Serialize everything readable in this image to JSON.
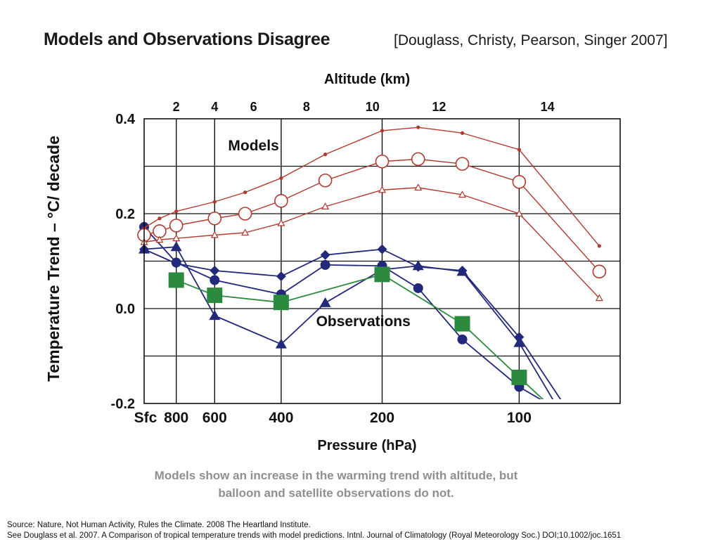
{
  "title": "Models and Observations Disagree",
  "citation": "[Douglass, Christy, Pearson, Singer 2007]",
  "caption_lines": [
    "Models show an increase in the warming trend with altitude, but",
    "balloon and satellite observations do not."
  ],
  "source_lines": [
    "Source: Nature, Not Human Activity, Rules the Climate. 2008 The Heartland Institute.",
    " See Douglass et al. 2007. A Comparison of tropical temperature trends with model predictions. Intnl. Journal of Climatology (Royal Meteorology Soc.) DOI;10.1002/joc.1651"
  ],
  "chart_data": {
    "type": "line",
    "title": "",
    "xlabel": "Pressure (hPa)",
    "x2label": "Altitude (km)",
    "ylabel": "Temperature Trend – °C/ decade",
    "ylim": [
      -0.2,
      0.4
    ],
    "yticks": [
      {
        "value": 0.4,
        "label": "0.4"
      },
      {
        "value": 0.2,
        "label": "0.2"
      },
      {
        "value": 0.0,
        "label": "0.0"
      },
      {
        "value": -0.2,
        "label": "-0.2"
      }
    ],
    "xticks": [
      {
        "value": 1000,
        "label": "Sfc"
      },
      {
        "value": 850,
        "label": "800"
      },
      {
        "value": 700,
        "label": "600"
      },
      {
        "value": 500,
        "label": "400"
      },
      {
        "value": 300,
        "label": "200"
      },
      {
        "value": 150,
        "label": "100"
      }
    ],
    "x2ticks": [
      {
        "value": 850,
        "label": "2"
      },
      {
        "value": 700,
        "label": "4"
      },
      {
        "value": 575,
        "label": "6"
      },
      {
        "value": 440,
        "label": "8"
      },
      {
        "value": 315,
        "label": "10"
      },
      {
        "value": 225,
        "label": "12"
      },
      {
        "value": 130,
        "label": "14"
      }
    ],
    "grid": true,
    "annotations": [
      {
        "text": "Models",
        "x": 575,
        "y": 0.345
      },
      {
        "text": "Observations",
        "x": 330,
        "y": -0.025
      }
    ],
    "series": [
      {
        "color": "#b03a2e",
        "marker": "dot",
        "group": "models",
        "points": [
          [
            1000,
            0.17
          ],
          [
            925,
            0.19
          ],
          [
            850,
            0.205
          ],
          [
            700,
            0.225
          ],
          [
            600,
            0.245
          ],
          [
            500,
            0.275
          ],
          [
            400,
            0.325
          ],
          [
            300,
            0.375
          ],
          [
            250,
            0.382
          ],
          [
            200,
            0.37
          ],
          [
            150,
            0.335
          ],
          [
            100,
            0.132
          ]
        ]
      },
      {
        "color": "#b03a2e",
        "marker": "circle",
        "group": "models",
        "points": [
          [
            1000,
            0.155
          ],
          [
            925,
            0.163
          ],
          [
            850,
            0.175
          ],
          [
            700,
            0.19
          ],
          [
            600,
            0.2
          ],
          [
            500,
            0.227
          ],
          [
            400,
            0.27
          ],
          [
            300,
            0.31
          ],
          [
            250,
            0.315
          ],
          [
            200,
            0.305
          ],
          [
            150,
            0.267
          ],
          [
            100,
            0.078
          ]
        ]
      },
      {
        "color": "#b03a2e",
        "marker": "triangle-open",
        "group": "models",
        "points": [
          [
            1000,
            0.14
          ],
          [
            925,
            0.145
          ],
          [
            850,
            0.148
          ],
          [
            700,
            0.155
          ],
          [
            600,
            0.16
          ],
          [
            500,
            0.18
          ],
          [
            400,
            0.215
          ],
          [
            300,
            0.25
          ],
          [
            250,
            0.255
          ],
          [
            200,
            0.24
          ],
          [
            150,
            0.2
          ],
          [
            100,
            0.022
          ]
        ]
      },
      {
        "color": "#22287a",
        "marker": "diamond",
        "group": "observations",
        "points": [
          [
            1000,
            0.125
          ],
          [
            850,
            0.095
          ],
          [
            700,
            0.08
          ],
          [
            500,
            0.068
          ],
          [
            400,
            0.113
          ],
          [
            300,
            0.125
          ],
          [
            250,
            0.088
          ],
          [
            200,
            0.08
          ],
          [
            150,
            -0.06
          ],
          [
            120,
            -0.2
          ]
        ]
      },
      {
        "color": "#22287a",
        "marker": "dot-large",
        "group": "observations",
        "points": [
          [
            1000,
            0.172
          ],
          [
            850,
            0.097
          ],
          [
            700,
            0.06
          ],
          [
            500,
            0.03
          ],
          [
            400,
            0.092
          ],
          [
            300,
            0.09
          ],
          [
            250,
            0.043
          ],
          [
            200,
            -0.065
          ],
          [
            150,
            -0.165
          ],
          [
            130,
            -0.2
          ]
        ]
      },
      {
        "color": "#22287a",
        "marker": "triangle",
        "group": "observations",
        "points": [
          [
            1000,
            0.125
          ],
          [
            850,
            0.13
          ],
          [
            700,
            -0.015
          ],
          [
            500,
            -0.075
          ],
          [
            400,
            0.012
          ],
          [
            300,
            0.082
          ],
          [
            250,
            0.09
          ],
          [
            200,
            0.078
          ],
          [
            150,
            -0.072
          ],
          [
            125,
            -0.2
          ]
        ]
      },
      {
        "color": "#2b8a3e",
        "marker": "square",
        "group": "observations",
        "points": [
          [
            850,
            0.06
          ],
          [
            700,
            0.028
          ],
          [
            500,
            0.013
          ],
          [
            300,
            0.072
          ],
          [
            200,
            -0.032
          ],
          [
            150,
            -0.145
          ],
          [
            130,
            -0.2
          ]
        ]
      }
    ]
  }
}
